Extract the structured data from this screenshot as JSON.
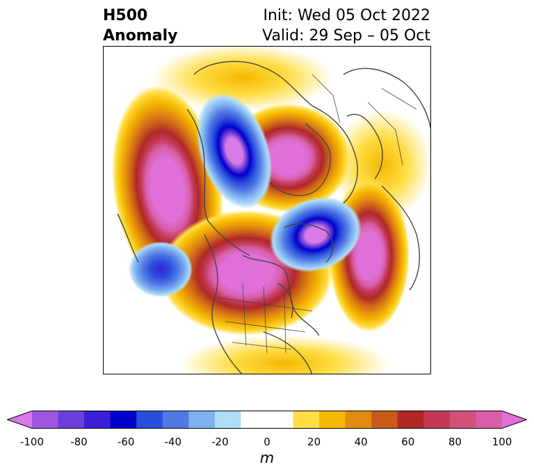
{
  "header": {
    "variable": "H500",
    "kind": "Anomaly",
    "init": "Init: Wed 05 Oct 2022",
    "valid": "Valid: 29 Sep – 05 Oct"
  },
  "colorbar": {
    "ticks": [
      "-100",
      "-80",
      "-60",
      "-40",
      "-20",
      "0",
      "20",
      "40",
      "60",
      "80",
      "100"
    ],
    "unit": "m",
    "colors": [
      "#d87ae8",
      "#9f55e0",
      "#6b3fd9",
      "#3a1fd6",
      "#0000cc",
      "#2a4fdc",
      "#5079e4",
      "#7eb0f0",
      "#b0dcf8",
      "#ffffff",
      "#ffffff",
      "#ffdd44",
      "#f5b700",
      "#e28b10",
      "#c85a1a",
      "#b02828",
      "#c23a56",
      "#d0527a",
      "#d85ea8",
      "#e070d8"
    ]
  }
}
